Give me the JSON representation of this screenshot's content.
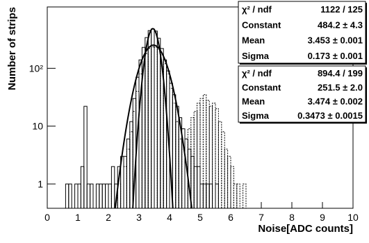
{
  "chart_data": {
    "type": "histogram",
    "xlabel": "Noise[ADC counts]",
    "ylabel": "Number of strips",
    "xlim": [
      0,
      10
    ],
    "xticks": [
      0,
      1,
      2,
      3,
      4,
      5,
      6,
      7,
      8,
      9,
      10
    ],
    "ylim": [
      0.38,
      1150
    ],
    "yticks": [
      1,
      10,
      {
        "value": 100,
        "label": "10²"
      }
    ],
    "log_y": true,
    "bins": [
      0.5,
      0.6,
      0.7,
      0.8,
      0.9,
      1.0,
      1.1,
      1.2,
      1.3,
      1.4,
      1.5,
      1.6,
      1.7,
      1.8,
      1.9,
      2.0,
      2.1,
      2.2,
      2.3,
      2.4,
      2.5,
      2.6,
      2.7,
      2.8,
      2.9,
      3.0,
      3.1,
      3.2,
      3.3,
      3.4,
      3.5,
      3.6,
      3.7,
      3.8,
      3.9,
      4.0,
      4.1,
      4.2,
      4.3,
      4.4,
      4.5,
      4.6,
      4.7,
      4.8,
      4.9,
      5.0,
      5.1,
      5.2,
      5.3,
      5.4,
      5.5,
      5.6,
      5.7,
      5.8,
      5.9,
      6.0,
      6.1,
      6.2,
      6.3,
      6.4,
      6.5
    ],
    "series": [
      {
        "color": "#000000",
        "style": "solid",
        "values": [
          null,
          1,
          1,
          null,
          1,
          1,
          2,
          22,
          1,
          1,
          null,
          1,
          1,
          1,
          1,
          1,
          2,
          1,
          2,
          3,
          3,
          6,
          12,
          30,
          70,
          140,
          230,
          340,
          450,
          480,
          440,
          330,
          220,
          140,
          90,
          55,
          35,
          22,
          14,
          9,
          6,
          4,
          3,
          2,
          2,
          1,
          1,
          1,
          1,
          null,
          1,
          null,
          null,
          null,
          null,
          null,
          null,
          null,
          null,
          null
        ]
      },
      {
        "color": "#000000",
        "style": "dashed",
        "values": [
          null,
          null,
          null,
          null,
          null,
          null,
          null,
          null,
          null,
          null,
          null,
          null,
          null,
          null,
          null,
          1,
          null,
          null,
          1,
          null,
          2,
          4,
          8,
          18,
          40,
          80,
          130,
          180,
          220,
          235,
          230,
          210,
          170,
          120,
          80,
          45,
          25,
          12,
          6,
          4,
          6,
          9,
          14,
          18,
          25,
          30,
          35,
          28,
          22,
          25,
          20,
          12,
          8,
          4,
          3,
          2,
          1,
          1,
          null,
          1
        ]
      }
    ],
    "fits": [
      {
        "constant": 484.2,
        "mean": 3.453,
        "sigma": 0.173
      },
      {
        "constant": 251.5,
        "mean": 3.474,
        "sigma": 0.3473
      }
    ],
    "stats": [
      {
        "rows": [
          [
            "χ² / ndf",
            "1122 / 125"
          ],
          [
            "Constant",
            "484.2 ± 4.3"
          ],
          [
            "Mean",
            "3.453 ± 0.001"
          ],
          [
            "Sigma",
            "0.173 ± 0.001"
          ]
        ]
      },
      {
        "rows": [
          [
            "χ² / ndf",
            "894.4 / 199"
          ],
          [
            "Constant",
            "251.5 ± 2.0"
          ],
          [
            "Mean",
            "3.474 ± 0.002"
          ],
          [
            "Sigma",
            "0.3473 ± 0.0015"
          ]
        ]
      }
    ]
  }
}
